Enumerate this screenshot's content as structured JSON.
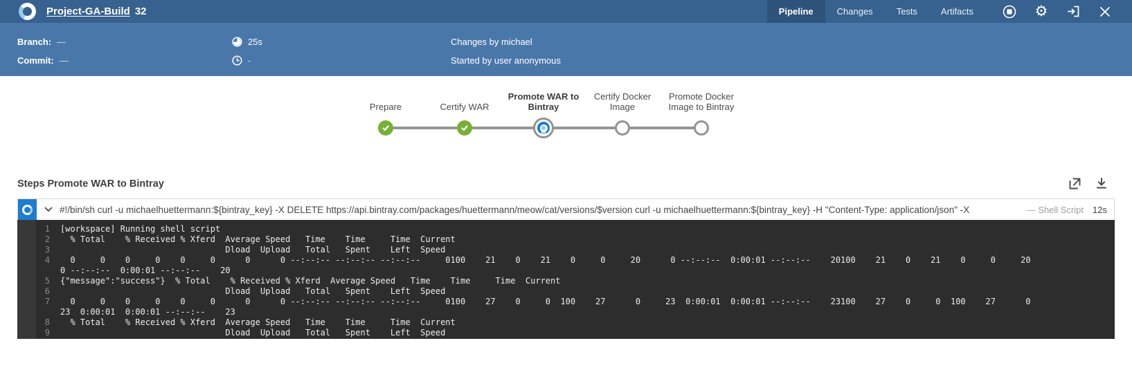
{
  "colors": {
    "topbar_blue": "#37618e",
    "subheader_blue": "#4a77a9",
    "active_tab_blue": "#2d537b",
    "accent_blue": "#1d7dcf",
    "success_green": "#78b037",
    "pending_gray": "#949393",
    "console_bg": "#2d2d2d"
  },
  "topbar": {
    "title": "Project-GA-Build",
    "build_number": "32",
    "tabs": [
      {
        "label": "Pipeline",
        "active": true
      },
      {
        "label": "Changes",
        "active": false
      },
      {
        "label": "Tests",
        "active": false
      },
      {
        "label": "Artifacts",
        "active": false
      }
    ]
  },
  "run_info": {
    "branch_label": "Branch:",
    "branch_value": "—",
    "commit_label": "Commit:",
    "commit_value": "—",
    "duration": "25s",
    "end_time": "-",
    "changes_by": "Changes by michael",
    "started_by": "Started by user anonymous"
  },
  "pipeline": {
    "stages": [
      {
        "label": "Prepare",
        "status": "success"
      },
      {
        "label": "Certify WAR",
        "status": "success"
      },
      {
        "label": "Promote WAR to Bintray",
        "status": "running"
      },
      {
        "label": "Certify Docker Image",
        "status": "pending"
      },
      {
        "label": "Promote Docker Image to Bintray",
        "status": "pending"
      }
    ]
  },
  "steps": {
    "heading": "Steps Promote WAR to Bintray",
    "step": {
      "command": "#!/bin/sh curl -u michaelhuettermann:${bintray_key} -X DELETE https://api.bintray.com/packages/huettermann/meow/cat/versions/$version curl -u michaelhuettermann:${bintray_key} -H \"Content-Type: application/json\" -X",
      "type_label": "— Shell Script",
      "duration": "12s"
    },
    "console_lines": [
      {
        "num": "1",
        "text": "[workspace] Running shell script"
      },
      {
        "num": "2",
        "text": "  % Total    % Received % Xferd  Average Speed   Time    Time     Time  Current"
      },
      {
        "num": "3",
        "text": "                                 Dload  Upload   Total   Spent    Left  Speed"
      },
      {
        "num": "4",
        "text": "  0     0    0     0    0     0      0      0 --:--:-- --:--:-- --:--:--     0100    21    0    21    0     0     20      0 --:--:--  0:00:01 --:--:--    20100    21    0    21    0     0     20"
      },
      {
        "num": "",
        "text": "0 --:--:--  0:00:01 --:--:--    20"
      },
      {
        "num": "5",
        "text": "{\"message\":\"success\"}  % Total    % Received % Xferd  Average Speed   Time    Time     Time  Current"
      },
      {
        "num": "6",
        "text": "                                 Dload  Upload   Total   Spent    Left  Speed"
      },
      {
        "num": "7",
        "text": "  0     0    0     0    0     0      0      0 --:--:-- --:--:-- --:--:--     0100    27    0     0  100    27      0     23  0:00:01  0:00:01 --:--:--    23100    27    0     0  100    27      0"
      },
      {
        "num": "",
        "text": "23  0:00:01  0:00:01 --:--:--    23"
      },
      {
        "num": "8",
        "text": "  % Total    % Received % Xferd  Average Speed   Time    Time     Time  Current"
      },
      {
        "num": "9",
        "text": "                                 Dload  Upload   Total   Spent    Left  Speed"
      }
    ]
  }
}
